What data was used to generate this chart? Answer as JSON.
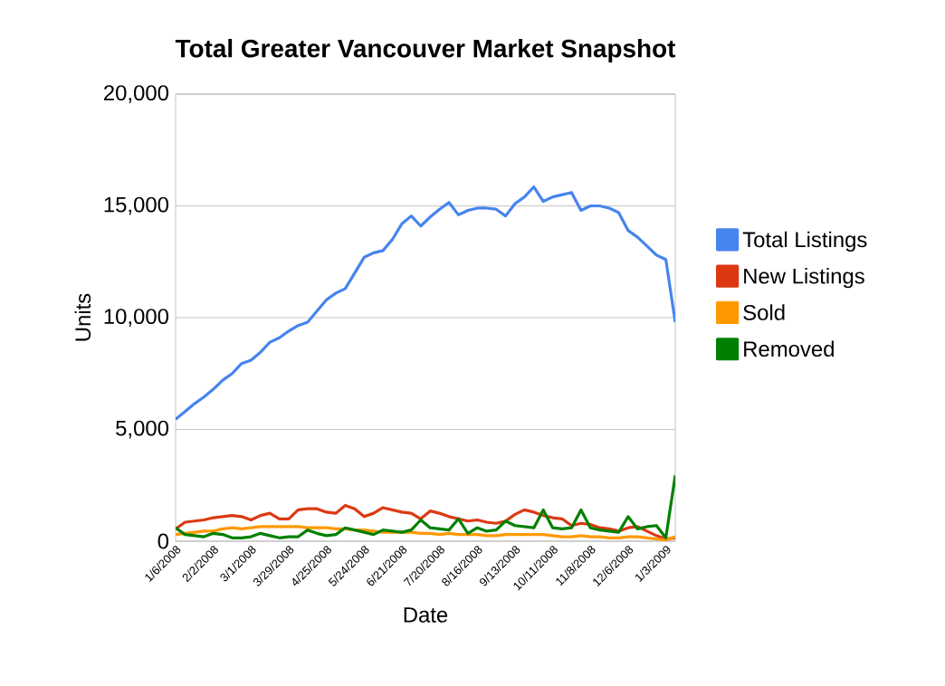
{
  "chart_data": {
    "type": "line",
    "title": "Total Greater Vancouver Market Snapshot",
    "xlabel": "Date",
    "ylabel": "Units",
    "categories": [
      "1/6/2008",
      null,
      null,
      null,
      "2/2/2008",
      null,
      null,
      null,
      "3/1/2008",
      null,
      null,
      null,
      "3/29/2008",
      null,
      null,
      null,
      "4/25/2008",
      null,
      null,
      null,
      "5/24/2008",
      null,
      null,
      null,
      "6/21/2008",
      null,
      null,
      null,
      "7/20/2008",
      null,
      null,
      null,
      "8/16/2008",
      null,
      null,
      null,
      "9/13/2008",
      null,
      null,
      null,
      "10/11/2008",
      null,
      null,
      null,
      "11/8/2008",
      null,
      null,
      null,
      "12/6/2008",
      null,
      null,
      null,
      "1/3/2009",
      null
    ],
    "series": [
      {
        "name": "Total Listings",
        "color": "#4684ee",
        "values": [
          5450,
          5800,
          6150,
          6450,
          6800,
          7200,
          7500,
          7950,
          8100,
          8450,
          8900,
          9100,
          9400,
          9650,
          9800,
          10300,
          10800,
          11100,
          11300,
          12000,
          12700,
          12900,
          13000,
          13500,
          14200,
          14550,
          14100,
          14500,
          14850,
          15150,
          14600,
          14800,
          14900,
          14900,
          14850,
          14550,
          15100,
          15400,
          15850,
          15200,
          15400,
          15500,
          15600,
          14800,
          15000,
          15000,
          14900,
          14700,
          13900,
          13600,
          13200,
          12800,
          12600,
          9800
        ]
      },
      {
        "name": "New Listings",
        "color": "#dc3912",
        "values": [
          550,
          850,
          900,
          950,
          1050,
          1100,
          1150,
          1100,
          950,
          1150,
          1250,
          1000,
          1000,
          1400,
          1450,
          1450,
          1300,
          1250,
          1600,
          1450,
          1100,
          1250,
          1500,
          1400,
          1300,
          1250,
          1000,
          1350,
          1250,
          1100,
          1000,
          900,
          950,
          850,
          800,
          900,
          1200,
          1400,
          1300,
          1150,
          1050,
          1000,
          700,
          800,
          750,
          600,
          550,
          450,
          600,
          650,
          450,
          250,
          100,
          150
        ]
      },
      {
        "name": "Sold",
        "color": "#ff9900",
        "values": [
          300,
          350,
          400,
          450,
          450,
          550,
          600,
          550,
          600,
          650,
          650,
          650,
          650,
          650,
          600,
          600,
          600,
          550,
          550,
          500,
          500,
          450,
          400,
          400,
          400,
          400,
          350,
          350,
          300,
          350,
          300,
          300,
          300,
          250,
          250,
          300,
          300,
          300,
          300,
          300,
          250,
          200,
          200,
          250,
          200,
          200,
          150,
          150,
          200,
          200,
          150,
          100,
          50,
          200
        ]
      },
      {
        "name": "Removed",
        "color": "#008000",
        "values": [
          600,
          300,
          250,
          200,
          350,
          300,
          150,
          150,
          200,
          350,
          250,
          150,
          200,
          200,
          500,
          350,
          250,
          300,
          600,
          500,
          400,
          300,
          500,
          450,
          400,
          500,
          950,
          600,
          550,
          500,
          1000,
          350,
          600,
          450,
          500,
          900,
          700,
          650,
          600,
          1400,
          600,
          550,
          600,
          1400,
          600,
          500,
          450,
          400,
          1100,
          550,
          650,
          700,
          150,
          2950
        ]
      }
    ],
    "ylim": [
      0,
      20000
    ],
    "yticks": [
      0,
      {
        "value": 5000,
        "label": "5,000"
      },
      {
        "value": 10000,
        "label": "10,000"
      },
      {
        "value": 15000,
        "label": "15,000"
      },
      {
        "value": 20000,
        "label": "20,000"
      }
    ],
    "grid": "y",
    "legend": "right",
    "marker": "none",
    "line_style": "solid"
  }
}
